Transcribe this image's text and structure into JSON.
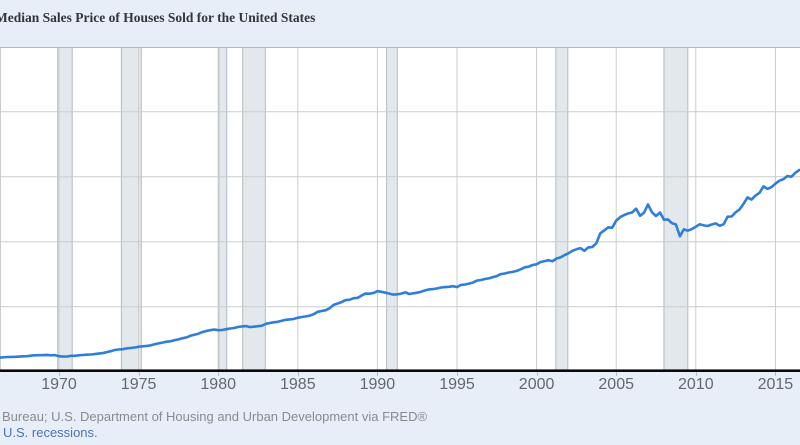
{
  "header": {
    "title": "Median Sales Price of Houses Sold for the United States"
  },
  "footer": {
    "source_line": "Bureau; U.S. Department of Housing and Urban Development via FRED®",
    "recessions_link": "U.S. recessions."
  },
  "colors": {
    "background": "#e8eef7",
    "plot_background": "#ffffff",
    "line": "#2f7ed8",
    "gridline": "#cccccc",
    "plot_top_border": "#b3b8bd",
    "recession_fill": "#e3e8ec",
    "recession_edge": "#b4bac1",
    "axis": "#0a0a0a",
    "tick_mark": "#b8bec5"
  },
  "chart_data": {
    "type": "line",
    "title": "Median Sales Price of Houses Sold for the United States",
    "xlabel": "",
    "ylabel": "",
    "grid": true,
    "legend": "none",
    "x_ticks": [
      1970,
      1975,
      1980,
      1985,
      1990,
      1995,
      2000,
      2005,
      2010,
      2015
    ],
    "x_range_years": [
      1966.25,
      2016.75
    ],
    "y_range_usd": [
      0,
      500000
    ],
    "y_gridlines_usd": [
      100000,
      200000,
      300000,
      400000,
      500000
    ],
    "recessions_year_spans": [
      [
        1969.92,
        1970.83
      ],
      [
        1973.92,
        1975.17
      ],
      [
        1980.04,
        1980.54
      ],
      [
        1981.54,
        1982.96
      ],
      [
        1990.58,
        1991.25
      ],
      [
        2001.21,
        2001.96
      ],
      [
        2008.0,
        2009.5
      ]
    ],
    "series": [
      {
        "name": "Median Sales Price of Houses Sold for the United States",
        "start_year": 1966.0,
        "step_years": 0.25,
        "values_usd_thousands": [
          21.4,
          21.75,
          22.2,
          22.6,
          22.7,
          23.0,
          23.3,
          23.7,
          23.9,
          24.7,
          25.2,
          25.4,
          25.6,
          25.9,
          25.3,
          25.6,
          23.9,
          23.3,
          23.4,
          24.4,
          24.5,
          25.3,
          25.7,
          26.2,
          26.5,
          27.1,
          27.8,
          28.6,
          30.2,
          31.6,
          33.4,
          34.1,
          34.6,
          35.8,
          36.4,
          37.3,
          38.3,
          39.1,
          39.7,
          40.4,
          42.2,
          43.6,
          44.8,
          46.1,
          46.8,
          48.4,
          49.7,
          51.4,
          52.8,
          55.3,
          56.9,
          58.5,
          60.9,
          62.6,
          63.9,
          64.9,
          63.8,
          64.2,
          65.4,
          66.4,
          67.2,
          68.7,
          69.7,
          70.1,
          68.6,
          69.3,
          70.0,
          70.8,
          73.7,
          74.9,
          76.0,
          76.7,
          78.3,
          79.8,
          80.5,
          81.2,
          82.9,
          84.2,
          85.0,
          86.2,
          88.4,
          92.1,
          93.4,
          94.6,
          97.6,
          102.8,
          104.9,
          107.1,
          110.1,
          110.6,
          113.1,
          113.6,
          117.1,
          120.1,
          120.0,
          121.1,
          123.9,
          122.9,
          121.6,
          120.1,
          118.6,
          119.1,
          120.1,
          122.1,
          119.6,
          120.6,
          121.6,
          123.1,
          125.1,
          126.6,
          127.1,
          128.1,
          129.6,
          130.1,
          130.6,
          131.6,
          130.1,
          133.6,
          134.1,
          135.6,
          137.1,
          140.1,
          141.1,
          142.6,
          143.6,
          145.6,
          147.1,
          150.1,
          151.1,
          152.6,
          153.6,
          155.1,
          157.6,
          160.6,
          161.6,
          164.1,
          165.3,
          168.8,
          170.1,
          171.6,
          169.8,
          174.1,
          175.9,
          179.3,
          182.1,
          186.0,
          188.3,
          190.1,
          186.0,
          191.3,
          191.9,
          197.5,
          212.7,
          217.6,
          222.0,
          221.6,
          232.5,
          237.9,
          240.9,
          243.6,
          244.9,
          250.8,
          239.9,
          244.7,
          257.4,
          245.3,
          239.5,
          244.9,
          233.9,
          234.3,
          228.4,
          226.4,
          208.4,
          219.0,
          216.9,
          219.4,
          222.9,
          226.9,
          225.0,
          224.1,
          226.4,
          228.1,
          224.5,
          226.9,
          238.4,
          238.7,
          245.2,
          249.7,
          258.4,
          268.1,
          264.8,
          270.9,
          275.2,
          285.1,
          281.3,
          283.8,
          289.2,
          293.8,
          296.1,
          301.1,
          299.8,
          306.0,
          310.3
        ]
      }
    ]
  }
}
